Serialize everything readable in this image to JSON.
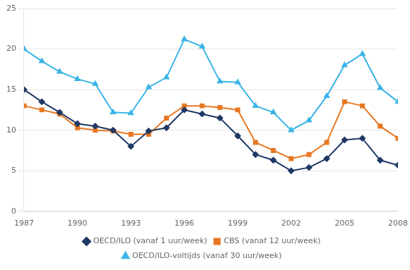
{
  "chart_data": {
    "type": "line",
    "x": [
      1987,
      1988,
      1989,
      1990,
      1991,
      1992,
      1993,
      1994,
      1995,
      1996,
      1997,
      1998,
      1999,
      2000,
      2001,
      2002,
      2003,
      2004,
      2005,
      2006,
      2007,
      2008
    ],
    "series": [
      {
        "name": "OECD/ILO (vanaf 1 uur/week)",
        "color": "#1f3864",
        "marker": "diamond",
        "values": [
          15.0,
          13.5,
          12.2,
          10.8,
          10.5,
          10.0,
          8.0,
          9.9,
          10.3,
          12.5,
          12.0,
          11.5,
          9.3,
          7.0,
          6.3,
          5.0,
          5.4,
          6.5,
          8.8,
          9.0,
          6.3,
          5.7
        ]
      },
      {
        "name": "CBS (vanaf 12 uur/week)",
        "color": "#e87722",
        "marker": "square",
        "values": [
          13.0,
          12.5,
          12.0,
          10.3,
          10.0,
          9.9,
          9.5,
          9.5,
          11.5,
          13.0,
          13.0,
          12.8,
          12.5,
          8.5,
          7.5,
          6.5,
          7.0,
          8.5,
          13.5,
          13.0,
          10.5,
          9.0
        ]
      },
      {
        "name": "OECD/ILO-voltijds (vanaf 30 uur/week)",
        "color": "#3ab4e6",
        "marker": "triangle",
        "values": [
          20.0,
          18.5,
          17.2,
          16.3,
          15.7,
          12.2,
          12.1,
          15.3,
          16.5,
          21.2,
          20.3,
          16.0,
          15.9,
          13.0,
          12.2,
          10.0,
          11.2,
          14.2,
          18.0,
          19.4,
          15.2,
          13.5
        ]
      }
    ],
    "xlim": [
      1987,
      2008
    ],
    "xticks": [
      1987,
      1990,
      1993,
      1996,
      1999,
      2002,
      2005,
      2008
    ],
    "ylim": [
      0,
      25
    ],
    "yticks": [
      0,
      5,
      10,
      15,
      20,
      25
    ],
    "grid": "y",
    "legend": "bottom"
  }
}
